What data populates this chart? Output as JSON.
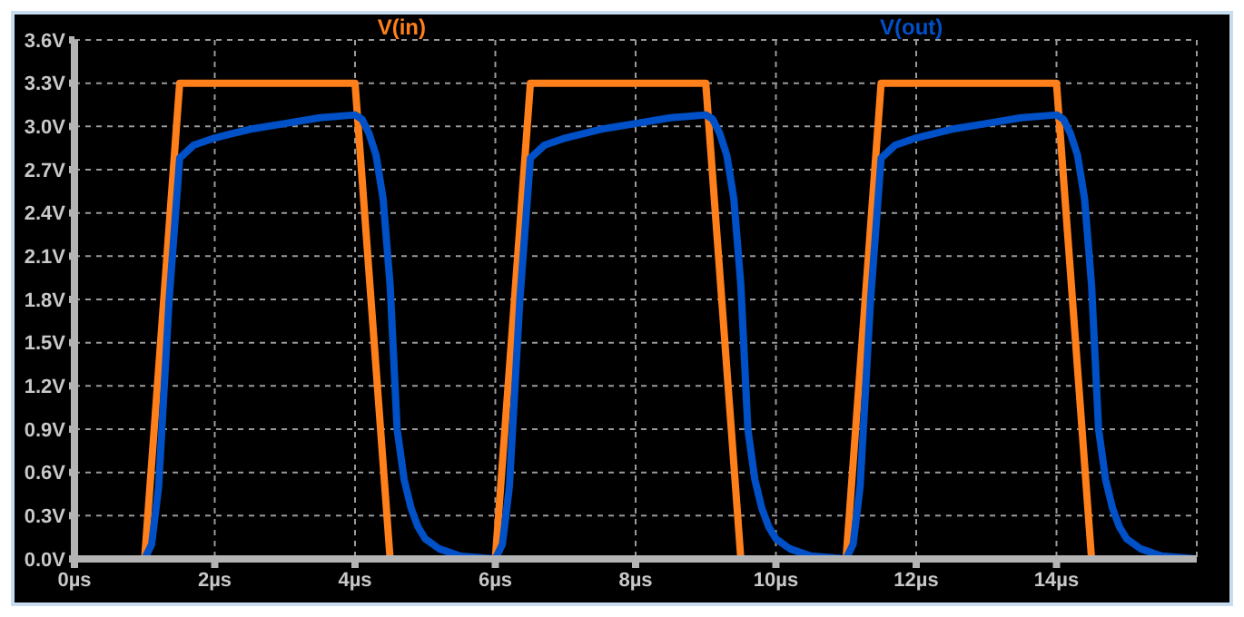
{
  "chart_data": {
    "type": "line",
    "xlim": [
      0,
      16
    ],
    "ylim": [
      0,
      3.6
    ],
    "xticks": [
      {
        "value": 0,
        "label": "0µs"
      },
      {
        "value": 2,
        "label": "2µs"
      },
      {
        "value": 4,
        "label": "4µs"
      },
      {
        "value": 6,
        "label": "6µs"
      },
      {
        "value": 8,
        "label": "8µs"
      },
      {
        "value": 10,
        "label": "10µs"
      },
      {
        "value": 12,
        "label": "12µs"
      },
      {
        "value": 14,
        "label": "14µs"
      }
    ],
    "yticks": [
      {
        "value": 0,
        "label": "0.0V"
      },
      {
        "value": 0.3,
        "label": "0.3V"
      },
      {
        "value": 0.6,
        "label": "0.6V"
      },
      {
        "value": 0.9,
        "label": "0.9V"
      },
      {
        "value": 1.2,
        "label": "1.2V"
      },
      {
        "value": 1.5,
        "label": "1.5V"
      },
      {
        "value": 1.8,
        "label": "1.8V"
      },
      {
        "value": 2.1,
        "label": "2.1V"
      },
      {
        "value": 2.4,
        "label": "2.4V"
      },
      {
        "value": 2.7,
        "label": "2.7V"
      },
      {
        "value": 3.0,
        "label": "3.0V"
      },
      {
        "value": 3.3,
        "label": "3.3V"
      },
      {
        "value": 3.6,
        "label": "3.6V"
      }
    ],
    "grid": true,
    "legend": "top",
    "marker": "none",
    "line_style": "solid",
    "series": [
      {
        "name": "V(in)",
        "color": "#ff7f1a",
        "x": [
          0,
          1,
          1.5,
          4,
          4.5,
          6,
          6.5,
          9,
          9.5,
          11,
          11.5,
          14,
          14.5,
          16
        ],
        "values": [
          0,
          0,
          3.3,
          3.3,
          0,
          0,
          3.3,
          3.3,
          0,
          0,
          3.3,
          3.3,
          0,
          0
        ]
      },
      {
        "name": "V(out)",
        "color": "#0050c8",
        "x": [
          0,
          1,
          1.1,
          1.2,
          1.35,
          1.5,
          1.7,
          2,
          2.5,
          3,
          3.5,
          4,
          4.1,
          4.2,
          4.3,
          4.4,
          4.5,
          4.6,
          4.7,
          4.8,
          4.9,
          5,
          5.2,
          5.5,
          6,
          6.1,
          6.2,
          6.35,
          6.5,
          6.7,
          7,
          7.5,
          8,
          8.5,
          9,
          9.1,
          9.2,
          9.3,
          9.4,
          9.5,
          9.6,
          9.7,
          9.8,
          9.9,
          10,
          10.2,
          10.5,
          11,
          11.1,
          11.2,
          11.35,
          11.5,
          11.7,
          12,
          12.5,
          13,
          13.5,
          14,
          14.1,
          14.2,
          14.3,
          14.4,
          14.5,
          14.6,
          14.7,
          14.8,
          14.9,
          15,
          15.2,
          15.5,
          16
        ],
        "values": [
          0,
          0,
          0.1,
          0.5,
          1.8,
          2.78,
          2.87,
          2.92,
          2.98,
          3.02,
          3.06,
          3.08,
          3.05,
          2.95,
          2.8,
          2.5,
          1.9,
          0.9,
          0.55,
          0.35,
          0.22,
          0.14,
          0.07,
          0.02,
          0,
          0.1,
          0.5,
          1.8,
          2.78,
          2.87,
          2.92,
          2.98,
          3.02,
          3.06,
          3.08,
          3.05,
          2.95,
          2.8,
          2.5,
          1.9,
          0.9,
          0.55,
          0.35,
          0.22,
          0.14,
          0.07,
          0.02,
          0,
          0.1,
          0.5,
          1.8,
          2.78,
          2.87,
          2.92,
          2.98,
          3.02,
          3.06,
          3.08,
          3.05,
          2.95,
          2.8,
          2.5,
          1.9,
          0.9,
          0.55,
          0.35,
          0.22,
          0.14,
          0.07,
          0.02,
          0
        ]
      }
    ]
  }
}
